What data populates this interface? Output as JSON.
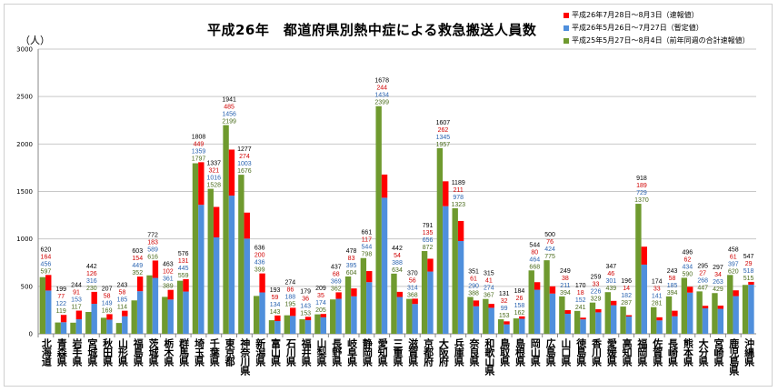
{
  "chart_data": {
    "type": "bar",
    "title": "平成26年　都道府県別熱中症による救急搬送人員数",
    "ylabel": "（人）",
    "ylim": [
      0,
      3000
    ],
    "yticks": [
      0,
      500,
      1000,
      1500,
      2000,
      2500,
      3000
    ],
    "grid": true,
    "legend_position": "top-right",
    "colors": {
      "red": "#ff0000",
      "blue": "#4f8fdc",
      "green": "#6f9a2f"
    },
    "categories": [
      "北海道",
      "青森県",
      "岩手県",
      "宮城県",
      "秋田県",
      "山形県",
      "福島県",
      "茨城県",
      "栃木県",
      "群馬県",
      "埼玉県",
      "千葉県",
      "東京都",
      "神奈川県",
      "新潟県",
      "富山県",
      "石川県",
      "福井県",
      "山梨県",
      "長野県",
      "岐阜県",
      "静岡県",
      "愛知県",
      "三重県",
      "滋賀県",
      "京都府",
      "大阪府",
      "兵庫県",
      "奈良県",
      "和歌山県",
      "鳥取県",
      "島根県",
      "岡山県",
      "広島県",
      "山口県",
      "徳島県",
      "香川県",
      "愛媛県",
      "高知県",
      "福岡県",
      "佐賀県",
      "長崎県",
      "熊本県",
      "大分県",
      "宮崎県",
      "鹿児島県",
      "沖縄県"
    ],
    "series": [
      {
        "name": "平成26年7月28日～8月3日（速報値）",
        "color": "#ff0000",
        "stack": "H26",
        "values": [
          164,
          77,
          91,
          126,
          58,
          58,
          154,
          183,
          102,
          131,
          449,
          321,
          485,
          274,
          200,
          59,
          86,
          36,
          35,
          68,
          83,
          117,
          244,
          54,
          56,
          135,
          262,
          211,
          61,
          41,
          32,
          26,
          80,
          76,
          38,
          18,
          33,
          46,
          14,
          189,
          33,
          58,
          62,
          27,
          34,
          61,
          29
        ]
      },
      {
        "name": "平成26年5月26日～7月27日（暫定値）",
        "color": "#4f8fdc",
        "stack": "H26",
        "values": [
          456,
          122,
          153,
          316,
          149,
          185,
          449,
          589,
          361,
          445,
          1359,
          1016,
          1456,
          1003,
          436,
          134,
          188,
          143,
          174,
          369,
          395,
          544,
          1434,
          388,
          314,
          656,
          1345,
          978,
          290,
          274,
          99,
          158,
          464,
          424,
          211,
          152,
          226,
          301,
          182,
          729,
          141,
          185,
          434,
          268,
          263,
          397,
          518
        ]
      },
      {
        "name": "平成25年5月27日～8月4日（前年同週の合計速報値）",
        "color": "#6f9a2f",
        "stack": "H25",
        "values": [
          597,
          119,
          117,
          230,
          169,
          114,
          352,
          616,
          389,
          559,
          1797,
          1528,
          2199,
          1676,
          399,
          143,
          195,
          153,
          205,
          362,
          604,
          798,
          2399,
          634,
          368,
          872,
          1957,
          1323,
          388,
          367,
          153,
          162,
          668,
          775,
          394,
          241,
          329,
          439,
          287,
          1370,
          281,
          394,
          590,
          447,
          429,
          620,
          515
        ]
      }
    ],
    "totals_h26": [
      620,
      199,
      244,
      442,
      207,
      243,
      603,
      772,
      463,
      576,
      1808,
      1337,
      1941,
      1277,
      636,
      193,
      274,
      179,
      209,
      437,
      478,
      661,
      1678,
      442,
      370,
      791,
      1607,
      1189,
      351,
      315,
      131,
      184,
      544,
      500,
      249,
      170,
      259,
      347,
      196,
      918,
      174,
      243,
      496,
      295,
      297,
      458,
      547
    ]
  }
}
